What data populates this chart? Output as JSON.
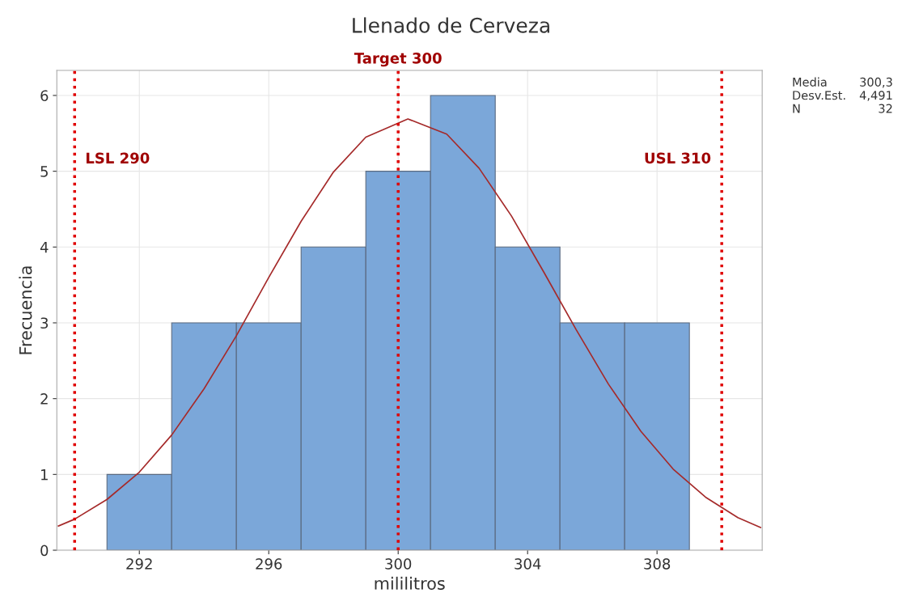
{
  "chart_data": {
    "type": "histogram",
    "title": "Llenado de Cerveza",
    "xlabel": "mililitros",
    "ylabel": "Frecuencia",
    "bins": [
      291,
      293,
      295,
      297,
      299,
      301,
      303,
      305,
      307,
      309
    ],
    "values": [
      1,
      3,
      3,
      4,
      5,
      6,
      4,
      3,
      3
    ],
    "color": "#7ba7d9",
    "series": [
      {
        "type": "line",
        "color": "#a52a2a",
        "x": [
          289.5,
          290,
          291,
          292,
          293,
          294,
          295,
          296,
          297,
          298,
          299,
          300.3,
          301.5,
          302.5,
          303.5,
          304.5,
          305.5,
          306.5,
          307.5,
          308.5,
          309.5,
          310.5,
          311.2
        ],
        "values": [
          0.32,
          0.41,
          0.67,
          1.03,
          1.52,
          2.13,
          2.83,
          3.6,
          4.34,
          4.99,
          5.45,
          5.69,
          5.49,
          5.04,
          4.41,
          3.67,
          2.91,
          2.19,
          1.57,
          1.07,
          0.7,
          0.43,
          0.3
        ]
      }
    ],
    "ref_lines": [
      {
        "axis": "x",
        "value": 290,
        "label": "LSL 290",
        "color": "#e00000",
        "line_style": "dotted"
      },
      {
        "axis": "x",
        "value": 300,
        "label": "Target 300",
        "color": "#e00000",
        "line_style": "dotted"
      },
      {
        "axis": "x",
        "value": 310,
        "label": "USL 310",
        "color": "#e00000",
        "line_style": "dotted"
      }
    ],
    "annotations": [
      "Media 300,3",
      "Desv.Est. 4,491",
      "N 32"
    ],
    "xlim": [
      289.45,
      311.25
    ],
    "ylim": [
      0,
      6.33
    ],
    "xticks": [
      292,
      296,
      300,
      304,
      308
    ],
    "yticks": [
      0,
      1,
      2,
      3,
      4,
      5,
      6
    ],
    "grid": true
  }
}
